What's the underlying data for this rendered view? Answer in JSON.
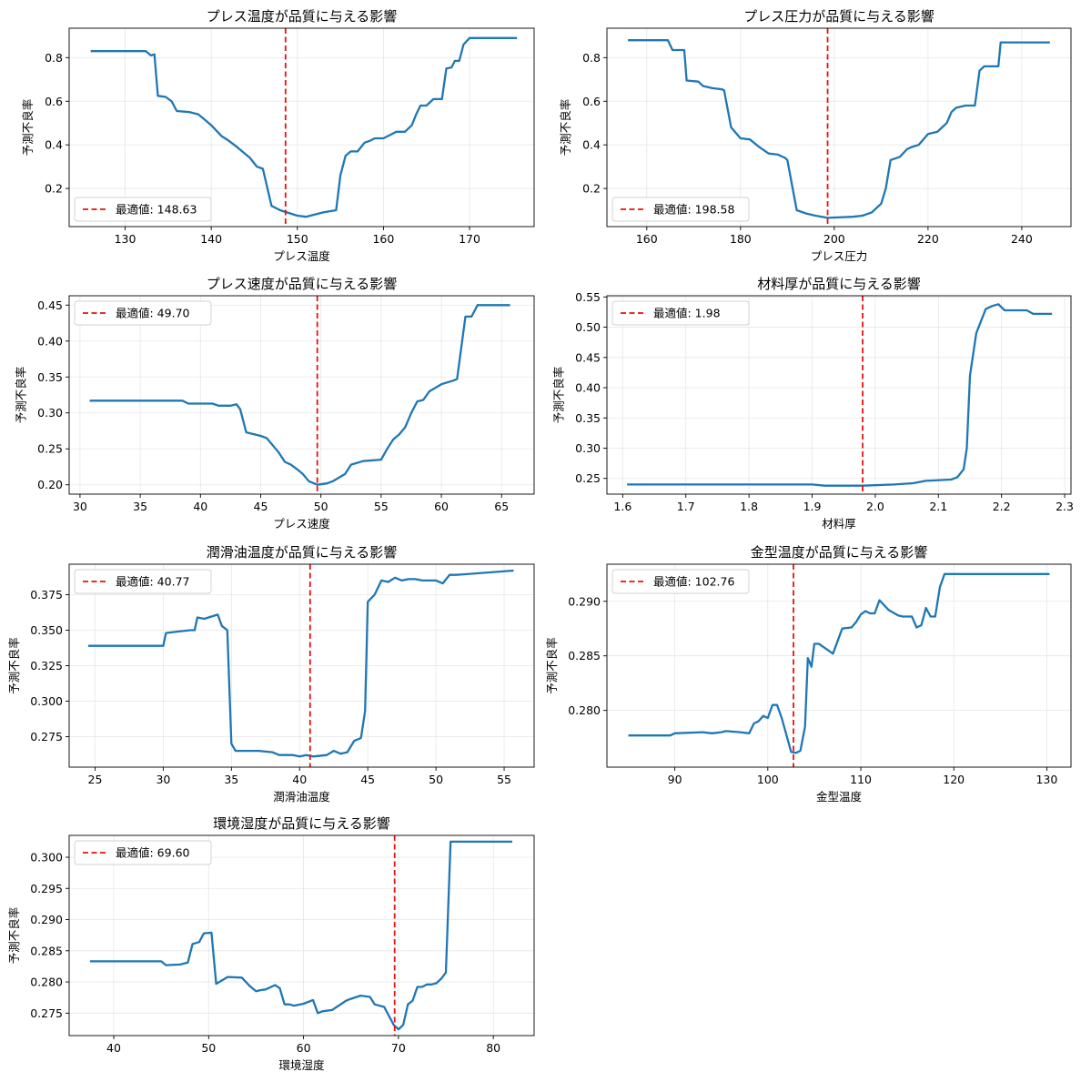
{
  "chart_data": [
    {
      "type": "line",
      "title": "プレス温度が品質に与える影響",
      "xlabel": "プレス温度",
      "ylabel": "予測不良率",
      "xlim": [
        123.5,
        177.5
      ],
      "ylim": [
        0.025,
        0.935
      ],
      "xticks": [
        130,
        140,
        150,
        160,
        170
      ],
      "yticks": [
        0.2,
        0.4,
        0.6,
        0.8
      ],
      "ytick_labels": [
        "0.2",
        "0.4",
        "0.6",
        "0.8"
      ],
      "grid": true,
      "legend_location": "lower left",
      "optimal": {
        "value": 148.63,
        "label": "最適値: 148.63"
      },
      "series": [
        {
          "x": [
            126,
            132.4,
            133,
            133.4,
            133.8,
            134.7,
            135.4,
            136,
            137.5,
            138.5,
            139.4,
            140,
            141.2,
            142,
            143,
            144.5,
            145.3,
            146,
            147,
            148,
            150,
            151,
            153,
            154.5,
            155,
            155.6,
            156.2,
            157,
            157.8,
            158.5,
            159,
            160,
            161.5,
            162.5,
            163.3,
            163.8,
            164.3,
            165,
            165.8,
            166.8,
            167.3,
            167.9,
            168.3,
            168.8,
            169.3,
            170,
            175.5
          ],
          "y": [
            0.83,
            0.83,
            0.81,
            0.815,
            0.625,
            0.62,
            0.6,
            0.555,
            0.55,
            0.54,
            0.51,
            0.49,
            0.44,
            0.42,
            0.39,
            0.34,
            0.3,
            0.29,
            0.12,
            0.1,
            0.075,
            0.07,
            0.09,
            0.1,
            0.26,
            0.35,
            0.37,
            0.37,
            0.41,
            0.42,
            0.43,
            0.43,
            0.46,
            0.46,
            0.49,
            0.54,
            0.58,
            0.58,
            0.61,
            0.61,
            0.75,
            0.755,
            0.785,
            0.785,
            0.86,
            0.89,
            0.89
          ]
        }
      ]
    },
    {
      "type": "line",
      "title": "プレス圧力が品質に与える影響",
      "xlabel": "プレス圧力",
      "ylabel": "予測不良率",
      "xlim": [
        151.5,
        250.5
      ],
      "ylim": [
        0.025,
        0.935
      ],
      "xticks": [
        160,
        180,
        200,
        220,
        240
      ],
      "yticks": [
        0.2,
        0.4,
        0.6,
        0.8
      ],
      "ytick_labels": [
        "0.2",
        "0.4",
        "0.6",
        "0.8"
      ],
      "grid": true,
      "legend_location": "lower left",
      "optimal": {
        "value": 198.58,
        "label": "最適値: 198.58"
      },
      "series": [
        {
          "x": [
            156,
            164.5,
            165.5,
            168,
            168.5,
            171,
            172,
            174,
            176,
            176.5,
            178,
            180,
            182,
            184,
            186,
            188,
            189.5,
            190,
            192,
            194,
            196,
            198.58,
            204,
            206,
            208,
            210,
            211,
            212,
            214,
            215.5,
            216.5,
            218,
            220,
            222,
            223,
            224,
            225,
            226,
            228,
            230,
            231,
            232,
            235,
            235.5,
            246
          ],
          "y": [
            0.88,
            0.88,
            0.835,
            0.835,
            0.695,
            0.69,
            0.67,
            0.66,
            0.655,
            0.65,
            0.48,
            0.43,
            0.425,
            0.39,
            0.36,
            0.355,
            0.34,
            0.33,
            0.1,
            0.085,
            0.075,
            0.065,
            0.07,
            0.075,
            0.09,
            0.13,
            0.2,
            0.33,
            0.345,
            0.38,
            0.39,
            0.4,
            0.45,
            0.46,
            0.48,
            0.5,
            0.55,
            0.57,
            0.58,
            0.58,
            0.74,
            0.76,
            0.76,
            0.87,
            0.87
          ]
        }
      ]
    },
    {
      "type": "line",
      "title": "プレス速度が品質に与える影響",
      "xlabel": "プレス速度",
      "ylabel": "予測不良率",
      "xlim": [
        29.1,
        67.7
      ],
      "ylim": [
        0.187,
        0.463
      ],
      "xticks": [
        30,
        35,
        40,
        45,
        50,
        55,
        60,
        65
      ],
      "yticks": [
        0.2,
        0.25,
        0.3,
        0.35,
        0.4,
        0.45
      ],
      "ytick_labels": [
        "0.20",
        "0.25",
        "0.30",
        "0.35",
        "0.40",
        "0.45"
      ],
      "grid": true,
      "legend_location": "upper left",
      "optimal": {
        "value": 49.7,
        "label": "最適値: 49.70"
      },
      "series": [
        {
          "x": [
            30.8,
            38.5,
            39,
            41,
            41.5,
            42.5,
            43,
            43.3,
            43.8,
            45,
            45.5,
            46,
            46.5,
            47,
            47.5,
            48,
            48.5,
            49,
            49.7,
            50.5,
            51,
            52,
            52.5,
            53.5,
            55,
            55.5,
            56,
            56.5,
            57,
            57.5,
            58,
            58.5,
            59,
            60,
            61,
            61.3,
            62,
            62.5,
            63,
            65.7
          ],
          "y": [
            0.317,
            0.317,
            0.313,
            0.313,
            0.31,
            0.31,
            0.312,
            0.305,
            0.273,
            0.268,
            0.265,
            0.255,
            0.245,
            0.232,
            0.228,
            0.222,
            0.215,
            0.205,
            0.2,
            0.202,
            0.205,
            0.215,
            0.228,
            0.233,
            0.235,
            0.25,
            0.263,
            0.27,
            0.28,
            0.3,
            0.316,
            0.318,
            0.33,
            0.34,
            0.345,
            0.347,
            0.434,
            0.434,
            0.45,
            0.45
          ]
        }
      ]
    },
    {
      "type": "line",
      "title": "材料厚が品質に与える影響",
      "xlabel": "材料厚",
      "ylabel": "予測不良率",
      "xlim": [
        1.575,
        2.31
      ],
      "ylim": [
        0.224,
        0.552
      ],
      "xticks": [
        1.6,
        1.7,
        1.8,
        1.9,
        2.0,
        2.1,
        2.2,
        2.3
      ],
      "xtick_labels": [
        "1.6",
        "1.7",
        "1.8",
        "1.9",
        "2.0",
        "2.1",
        "2.2",
        "2.3"
      ],
      "yticks": [
        0.25,
        0.3,
        0.35,
        0.4,
        0.45,
        0.5,
        0.55
      ],
      "ytick_labels": [
        "0.25",
        "0.30",
        "0.35",
        "0.40",
        "0.45",
        "0.50",
        "0.55"
      ],
      "grid": true,
      "legend_location": "upper left",
      "optimal": {
        "value": 1.98,
        "label": "最適値: 1.98"
      },
      "series": [
        {
          "x": [
            1.607,
            1.9,
            1.92,
            1.98,
            2.03,
            2.06,
            2.08,
            2.12,
            2.13,
            2.14,
            2.145,
            2.15,
            2.16,
            2.175,
            2.185,
            2.195,
            2.205,
            2.24,
            2.25,
            2.28
          ],
          "y": [
            0.24,
            0.24,
            0.238,
            0.238,
            0.24,
            0.242,
            0.246,
            0.248,
            0.252,
            0.265,
            0.3,
            0.42,
            0.49,
            0.53,
            0.535,
            0.538,
            0.528,
            0.528,
            0.522,
            0.522
          ]
        }
      ]
    },
    {
      "type": "line",
      "title": "潤滑油温度が品質に与える影響",
      "xlabel": "潤滑油温度",
      "ylabel": "予測不良率",
      "xlim": [
        23.1,
        57.2
      ],
      "ylim": [
        0.2535,
        0.3965
      ],
      "xticks": [
        25,
        30,
        35,
        40,
        45,
        50,
        55
      ],
      "yticks": [
        0.275,
        0.3,
        0.325,
        0.35,
        0.375
      ],
      "ytick_labels": [
        "0.275",
        "0.300",
        "0.325",
        "0.350",
        "0.375"
      ],
      "grid": true,
      "legend_location": "upper left",
      "optimal": {
        "value": 40.77,
        "label": "最適値: 40.77"
      },
      "series": [
        {
          "x": [
            24.5,
            30,
            30.2,
            31,
            32,
            32.3,
            32.5,
            33,
            34,
            34.3,
            34.7,
            35,
            35.3,
            36,
            37,
            38,
            38.5,
            39.5,
            40,
            40.5,
            41,
            42,
            42.5,
            43,
            43.5,
            44,
            44.5,
            44.8,
            45,
            45.5,
            46,
            46.5,
            47,
            47.5,
            48,
            48.5,
            49,
            50,
            50.5,
            51,
            51.5,
            55.7
          ],
          "y": [
            0.339,
            0.339,
            0.348,
            0.349,
            0.35,
            0.35,
            0.359,
            0.358,
            0.361,
            0.353,
            0.35,
            0.27,
            0.265,
            0.265,
            0.265,
            0.264,
            0.262,
            0.262,
            0.261,
            0.262,
            0.261,
            0.262,
            0.265,
            0.263,
            0.264,
            0.272,
            0.274,
            0.293,
            0.37,
            0.375,
            0.385,
            0.384,
            0.387,
            0.385,
            0.386,
            0.386,
            0.385,
            0.385,
            0.383,
            0.389,
            0.389,
            0.392
          ]
        }
      ]
    },
    {
      "type": "line",
      "title": "金型温度が品質に与える影響",
      "xlabel": "金型温度",
      "ylabel": "予測不良率",
      "xlim": [
        82.7,
        132.6
      ],
      "ylim": [
        0.2748,
        0.2934
      ],
      "xticks": [
        90,
        100,
        110,
        120,
        130
      ],
      "yticks": [
        0.28,
        0.285,
        0.29
      ],
      "ytick_labels": [
        "0.280",
        "0.285",
        "0.290"
      ],
      "grid": true,
      "legend_location": "upper left",
      "optimal": {
        "value": 102.76,
        "label": "最適値: 102.76"
      },
      "series": [
        {
          "x": [
            85,
            89.5,
            90,
            93,
            94,
            95,
            95.5,
            97,
            98,
            98.5,
            99,
            99.5,
            100,
            100.5,
            101,
            101.5,
            102.5,
            103,
            103.5,
            104,
            104.3,
            104.7,
            105,
            105.5,
            106,
            107,
            108,
            109,
            109.5,
            110,
            110.5,
            111,
            111.5,
            112,
            113,
            114,
            114.5,
            115,
            115.5,
            116,
            116.5,
            117,
            117.5,
            118,
            118.5,
            119,
            130.3
          ],
          "y": [
            0.2777,
            0.2777,
            0.2779,
            0.278,
            0.2779,
            0.278,
            0.2781,
            0.278,
            0.2779,
            0.2788,
            0.279,
            0.2795,
            0.2793,
            0.2805,
            0.2805,
            0.2793,
            0.2762,
            0.2761,
            0.2763,
            0.2785,
            0.2848,
            0.284,
            0.2861,
            0.2861,
            0.2858,
            0.2852,
            0.2875,
            0.2876,
            0.2881,
            0.2888,
            0.2891,
            0.2889,
            0.2889,
            0.2901,
            0.2892,
            0.2887,
            0.2886,
            0.2886,
            0.2886,
            0.2876,
            0.2878,
            0.2894,
            0.2886,
            0.2886,
            0.2913,
            0.2925,
            0.2925
          ]
        }
      ]
    },
    {
      "type": "line",
      "title": "環境湿度が品質に与える影響",
      "xlabel": "環境湿度",
      "ylabel": "予測不良率",
      "xlim": [
        35.3,
        84.3
      ],
      "ylim": [
        0.2714,
        0.3035
      ],
      "xticks": [
        40,
        50,
        60,
        70,
        80
      ],
      "yticks": [
        0.275,
        0.28,
        0.285,
        0.29,
        0.295,
        0.3
      ],
      "ytick_labels": [
        "0.275",
        "0.280",
        "0.285",
        "0.290",
        "0.295",
        "0.300"
      ],
      "grid": true,
      "legend_location": "upper left",
      "optimal": {
        "value": 69.6,
        "label": "最適値: 69.60"
      },
      "series": [
        {
          "x": [
            37.5,
            45,
            45.5,
            47,
            47.8,
            48.3,
            49,
            49.5,
            50.3,
            50.8,
            52,
            53.5,
            54.3,
            55,
            55.5,
            56,
            57,
            57.5,
            58,
            58.5,
            59,
            60,
            61,
            61.5,
            62,
            63,
            63.5,
            64.5,
            65,
            66,
            67,
            67.5,
            68.5,
            69.5,
            70,
            70.5,
            71,
            71.5,
            72,
            72.5,
            73,
            73.5,
            74,
            74.5,
            75,
            75.5,
            82
          ],
          "y": [
            0.2833,
            0.2833,
            0.2827,
            0.2828,
            0.2831,
            0.2861,
            0.2864,
            0.2878,
            0.2879,
            0.2797,
            0.2808,
            0.2807,
            0.2794,
            0.2785,
            0.2787,
            0.2788,
            0.2795,
            0.279,
            0.2764,
            0.2764,
            0.2762,
            0.2765,
            0.2771,
            0.275,
            0.2753,
            0.2755,
            0.276,
            0.277,
            0.2773,
            0.2778,
            0.2776,
            0.2764,
            0.276,
            0.2731,
            0.2724,
            0.2731,
            0.2764,
            0.277,
            0.2792,
            0.2792,
            0.2796,
            0.2796,
            0.2798,
            0.2805,
            0.2815,
            0.3025,
            0.3025
          ]
        }
      ]
    }
  ]
}
